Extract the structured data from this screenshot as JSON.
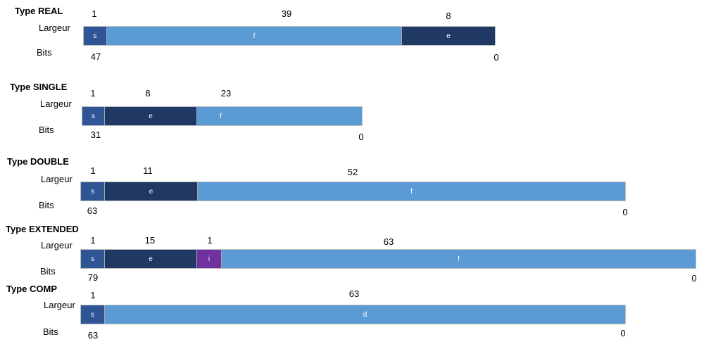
{
  "labels": {
    "largeur": "Largeur",
    "bits": "Bits"
  },
  "colors": {
    "s": "#2F5597",
    "e": "#203864",
    "f": "#5B9BD5",
    "i": "#7030A0"
  },
  "types": [
    {
      "title": "Type REAL",
      "widths": [
        "1",
        "39",
        "8"
      ],
      "fields": [
        "s",
        "f",
        "e"
      ],
      "bit_high": "47",
      "bit_low": "0"
    },
    {
      "title": "Type SINGLE",
      "widths": [
        "1",
        "8",
        "23"
      ],
      "fields": [
        "s",
        "e",
        "f"
      ],
      "bit_high": "31",
      "bit_low": "0"
    },
    {
      "title": "Type DOUBLE",
      "widths": [
        "1",
        "11",
        "52"
      ],
      "fields": [
        "s",
        "e",
        "f"
      ],
      "bit_high": "63",
      "bit_low": "0"
    },
    {
      "title": "Type EXTENDED",
      "widths": [
        "1",
        "15",
        "1",
        "63"
      ],
      "fields": [
        "s",
        "e",
        "i",
        "f"
      ],
      "bit_high": "79",
      "bit_low": "0"
    },
    {
      "title": "Type COMP",
      "widths": [
        "1",
        "63"
      ],
      "fields": [
        "s",
        "d"
      ],
      "bit_high": "63",
      "bit_low": "0"
    }
  ]
}
